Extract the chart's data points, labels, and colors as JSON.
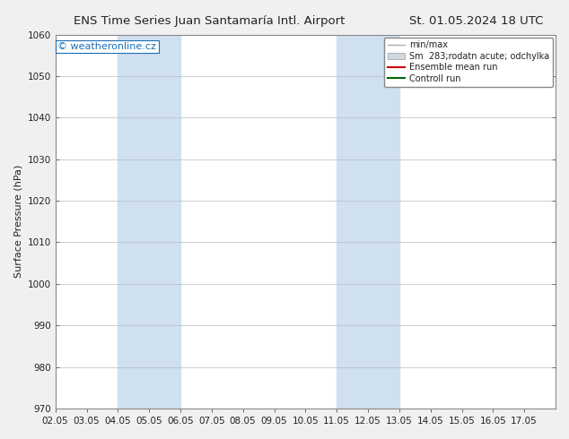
{
  "title_left": "ENS Time Series Juan Santamaría Intl. Airport",
  "title_right": "St. 01.05.2024 18 UTC",
  "ylabel": "Surface Pressure (hPa)",
  "ylim": [
    970,
    1060
  ],
  "yticks": [
    970,
    980,
    990,
    1000,
    1010,
    1020,
    1030,
    1040,
    1050,
    1060
  ],
  "xlim_min": 0,
  "xlim_max": 16,
  "xtick_labels": [
    "02.05",
    "03.05",
    "04.05",
    "05.05",
    "06.05",
    "07.05",
    "08.05",
    "09.05",
    "10.05",
    "11.05",
    "12.05",
    "13.05",
    "14.05",
    "15.05",
    "16.05",
    "17.05"
  ],
  "watermark": "© weatheronline.cz",
  "watermark_color": "#1a6fb5",
  "shaded_regions": [
    {
      "xstart": 2,
      "xend": 4,
      "color": "#cfe0f0"
    },
    {
      "xstart": 9,
      "xend": 11,
      "color": "#cfe0f0"
    }
  ],
  "background_color": "#f0f0f0",
  "plot_bg_color": "#ffffff",
  "grid_color": "#bbbbbb",
  "font_color": "#222222",
  "title_fontsize": 9.5,
  "label_fontsize": 8,
  "tick_fontsize": 7.5,
  "watermark_fontsize": 8,
  "legend_fontsize": 7,
  "min_max_color": "#aaaaaa",
  "sm_band_color": "#d0d8e0",
  "ensemble_color": "#cc0000",
  "control_color": "#006600",
  "sm_label": "Sm  283;rodatn acute; odchylka",
  "legend_label_min_max": "min/max",
  "legend_label_ensemble": "Ensemble mean run",
  "legend_label_control": "Controll run"
}
